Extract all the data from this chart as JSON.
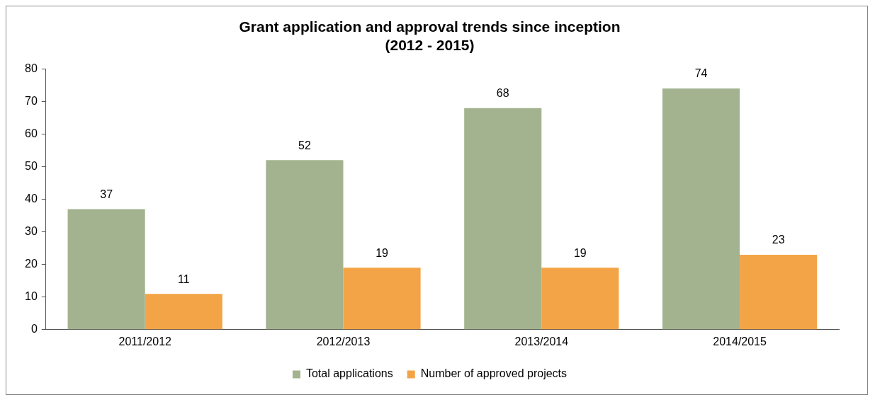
{
  "chart_data": {
    "type": "bar",
    "title": "Grant application and approval trends since inception\n(2012 - 2015)",
    "categories": [
      "2011/2012",
      "2012/2013",
      "2013/2014",
      "2014/2015"
    ],
    "series": [
      {
        "name": "Total applications",
        "color": "#a3b38f",
        "values": [
          37,
          52,
          68,
          74
        ]
      },
      {
        "name": "Number of approved projects",
        "color": "#f2a446",
        "values": [
          11,
          19,
          19,
          23
        ]
      }
    ],
    "ylim": [
      0,
      80
    ],
    "yticks": [
      0,
      10,
      20,
      30,
      40,
      50,
      60,
      70,
      80
    ],
    "grid": false,
    "legend": "bottom",
    "data_labels": true
  }
}
